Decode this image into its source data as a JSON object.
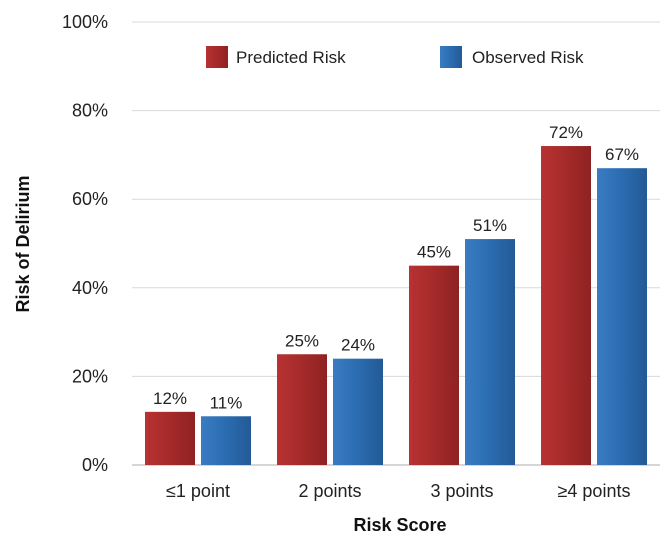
{
  "chart_data": {
    "type": "bar",
    "title": "",
    "xlabel": "Risk Score",
    "ylabel": "Risk of Delirium",
    "categories": [
      "≤1 point",
      "2 points",
      "3 points",
      "≥4 points"
    ],
    "series": [
      {
        "name": "Predicted Risk",
        "color": "#a52a2a",
        "values": [
          12,
          25,
          45,
          72
        ],
        "labels": [
          "12%",
          "25%",
          "45%",
          "72%"
        ]
      },
      {
        "name": "Observed Risk",
        "color": "#2b6cb0",
        "values": [
          11,
          24,
          51,
          67
        ],
        "labels": [
          "11%",
          "24%",
          "51%",
          "67%"
        ]
      }
    ],
    "ylim": [
      0,
      100
    ],
    "yticks": [
      0,
      20,
      40,
      60,
      80,
      100
    ],
    "ytick_labels": [
      "0%",
      "20%",
      "40%",
      "60%",
      "80%",
      "100%"
    ],
    "grid": true,
    "legend_position": "top-center"
  }
}
